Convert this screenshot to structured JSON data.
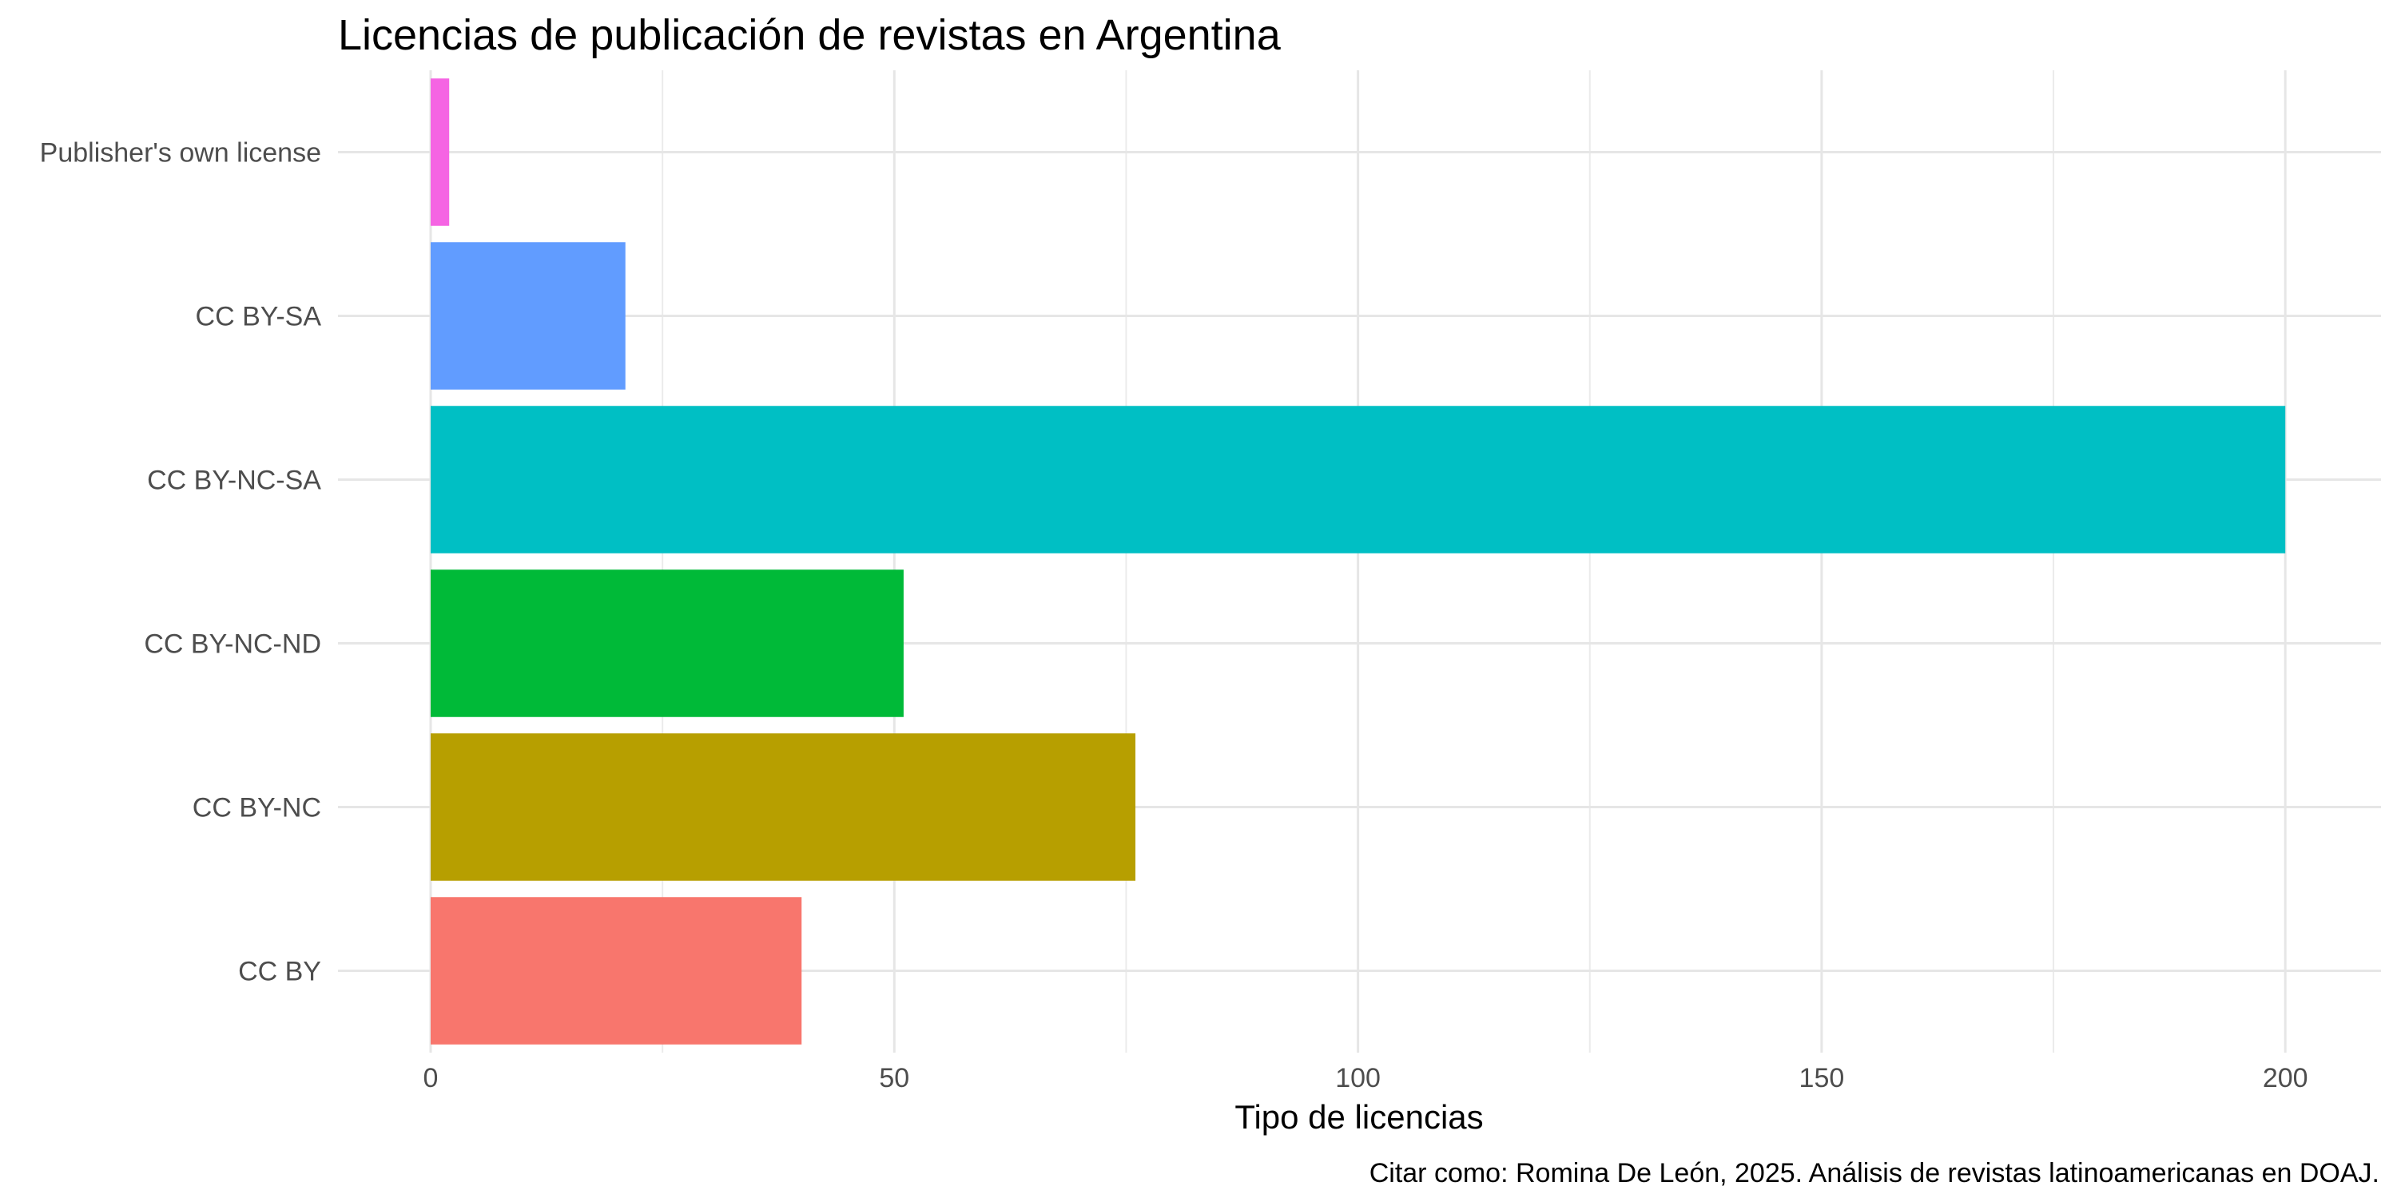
{
  "chart_data": {
    "type": "bar",
    "orientation": "horizontal",
    "title": "Licencias de publicación de revistas en Argentina",
    "xlabel": "Tipo de licencias",
    "ylabel": "",
    "caption": "Citar como: Romina De León, 2025. Análisis de revistas latinoamericanas en DOAJ.",
    "categories": [
      "CC BY",
      "CC BY-NC",
      "CC BY-NC-ND",
      "CC BY-NC-SA",
      "CC BY-SA",
      "Publisher's own license"
    ],
    "values": [
      40,
      76,
      51,
      200,
      21,
      2
    ],
    "colors": [
      "#F8766D",
      "#B79F00",
      "#00BA38",
      "#00BFC4",
      "#619CFF",
      "#F564E3"
    ],
    "xlim": [
      0,
      210
    ],
    "x_ticks": [
      0,
      50,
      100,
      150,
      200
    ],
    "grid": true,
    "legend": "none"
  }
}
